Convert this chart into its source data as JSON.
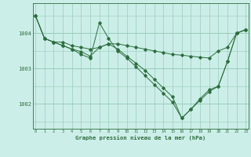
{
  "title": "Graphe pression niveau de la mer (hPa)",
  "background_color": "#cceee8",
  "grid_color": "#99ccbb",
  "line_color": "#2d6e3e",
  "x_ticks": [
    0,
    1,
    2,
    3,
    4,
    5,
    6,
    7,
    8,
    9,
    10,
    11,
    12,
    13,
    14,
    15,
    16,
    17,
    18,
    19,
    20,
    21,
    22,
    23
  ],
  "ylim": [
    1001.3,
    1004.85
  ],
  "xlim": [
    -0.3,
    23.3
  ],
  "yticks": [
    1002,
    1003,
    1004
  ],
  "series": [
    {
      "x": [
        0,
        1,
        2,
        3,
        4,
        5,
        6,
        7,
        8,
        9,
        10,
        11,
        12,
        13,
        14,
        15,
        16,
        17,
        18,
        19,
        20,
        21,
        22,
        23
      ],
      "y": [
        1004.5,
        1003.85,
        1003.75,
        1003.75,
        1003.65,
        1003.6,
        1003.55,
        1003.6,
        1003.7,
        1003.7,
        1003.65,
        1003.6,
        1003.55,
        1003.5,
        1003.45,
        1003.4,
        1003.38,
        1003.35,
        1003.32,
        1003.3,
        1003.5,
        1003.6,
        1004.0,
        1004.1
      ]
    },
    {
      "x": [
        0,
        1,
        2,
        3,
        4,
        5,
        6,
        7,
        8,
        9,
        10,
        11,
        12,
        13,
        14,
        15,
        16,
        17,
        18,
        19,
        20,
        21,
        22,
        23
      ],
      "y": [
        1004.5,
        1003.85,
        1003.75,
        1003.65,
        1003.55,
        1003.48,
        1003.35,
        1003.6,
        1003.7,
        1003.55,
        1003.35,
        1003.15,
        1002.95,
        1002.7,
        1002.45,
        1002.2,
        1001.6,
        1001.85,
        1002.1,
        1002.35,
        1002.5,
        1003.2,
        1004.0,
        1004.1
      ]
    },
    {
      "x": [
        0,
        1,
        2,
        3,
        4,
        5,
        6,
        7,
        8,
        9,
        10,
        11,
        12,
        13,
        14,
        15,
        16,
        17,
        18,
        19,
        20,
        21,
        22,
        23
      ],
      "y": [
        1004.5,
        1003.85,
        1003.75,
        1003.65,
        1003.55,
        1003.4,
        1003.3,
        1004.3,
        1003.85,
        1003.5,
        1003.3,
        1003.05,
        1002.8,
        1002.55,
        1002.3,
        1002.05,
        1001.6,
        1001.85,
        1002.15,
        1002.4,
        1002.5,
        1003.2,
        1004.0,
        1004.1
      ]
    }
  ]
}
